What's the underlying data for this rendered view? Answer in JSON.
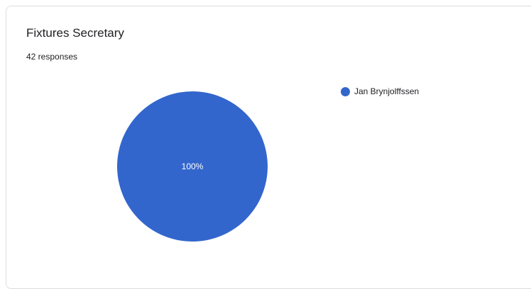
{
  "chart_data": {
    "type": "pie",
    "title": "Fixtures Secretary",
    "subtitle": "42 responses",
    "slices": [
      {
        "label": "Jan Brynjolffssen",
        "value": 100,
        "data_label": "100%",
        "color": "#3366cc"
      }
    ],
    "legend_position": "right"
  }
}
